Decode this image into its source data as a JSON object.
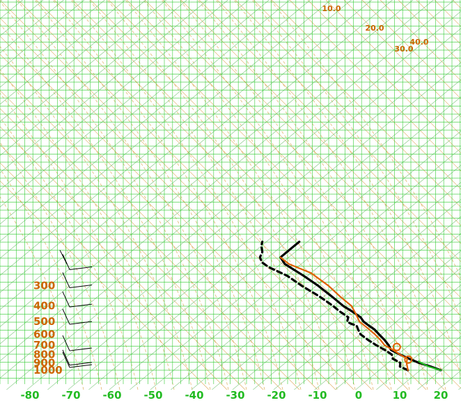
{
  "chart_data": {
    "type": "line",
    "title": "",
    "xlabel": "",
    "ylabel": "",
    "x_ticks": [
      "-80",
      "-70",
      "-60",
      "-50",
      "-40",
      "-30",
      "-20",
      "-10",
      "0",
      "10",
      "20"
    ],
    "p_ticks": [
      "300",
      "400",
      "500",
      "600",
      "700",
      "800",
      "900",
      "1000"
    ],
    "mixing_ratio_labels": [
      "10.0",
      "20.0",
      "30.0",
      "40.0"
    ],
    "xlim": [
      -80,
      22
    ],
    "plim": [
      1050,
      200
    ],
    "colors": {
      "grid": "#33cc33",
      "isotherm_diag": "#88cc88",
      "dry_adiabat": "#cc7a00",
      "moist_adiabat": "#d4a040",
      "temperature": "#000000",
      "dewpoint": "#000000",
      "parcel": "#e06000",
      "lcl_marker": "#e06000",
      "label_x": "#22bb22",
      "label_p": "#cc6600",
      "wind_barb": "#000000"
    },
    "series": [
      {
        "role": "temperature",
        "style": "solid",
        "points": [
          [
            1000,
            20
          ],
          [
            950,
            16.5
          ],
          [
            900,
            12.5
          ],
          [
            850,
            9
          ],
          [
            800,
            5.5
          ],
          [
            750,
            2
          ],
          [
            700,
            0
          ],
          [
            650,
            -2.5
          ],
          [
            600,
            -5.5
          ],
          [
            560,
            -8
          ],
          [
            530,
            -10.5
          ],
          [
            500,
            -13
          ],
          [
            470,
            -15
          ],
          [
            430,
            -19
          ],
          [
            400,
            -22.5
          ],
          [
            350,
            -28
          ],
          [
            300,
            -34.5
          ],
          [
            260,
            -41
          ],
          [
            220,
            -49
          ],
          [
            200,
            -52
          ],
          [
            180,
            -52
          ],
          [
            160,
            -52
          ]
        ]
      },
      {
        "role": "dewpoint",
        "style": "dashed",
        "points": [
          [
            1000,
            12
          ],
          [
            950,
            9
          ],
          [
            900,
            8
          ],
          [
            850,
            5
          ],
          [
            800,
            3.5
          ],
          [
            750,
            0.5
          ],
          [
            700,
            -3
          ],
          [
            650,
            -6.5
          ],
          [
            600,
            -10
          ],
          [
            560,
            -12
          ],
          [
            530,
            -13.5
          ],
          [
            515,
            -15.5
          ],
          [
            500,
            -17
          ],
          [
            470,
            -18
          ],
          [
            430,
            -22
          ],
          [
            400,
            -25
          ],
          [
            350,
            -31
          ],
          [
            300,
            -38.5
          ],
          [
            260,
            -45
          ],
          [
            230,
            -52
          ],
          [
            215,
            -55
          ],
          [
            200,
            -57
          ],
          [
            185,
            -58
          ],
          [
            170,
            -60
          ],
          [
            160,
            -61
          ]
        ]
      },
      {
        "role": "parcel",
        "style": "solid",
        "points": [
          [
            1000,
            12
          ],
          [
            900,
            9.5
          ],
          [
            850,
            8.5
          ],
          [
            800,
            5.5
          ],
          [
            750,
            2.5
          ],
          [
            700,
            -1
          ],
          [
            650,
            -3.5
          ],
          [
            600,
            -6.5
          ],
          [
            550,
            -10
          ],
          [
            500,
            -14
          ],
          [
            450,
            -17
          ],
          [
            400,
            -20.5
          ],
          [
            350,
            -26
          ],
          [
            300,
            -32
          ],
          [
            250,
            -40
          ],
          [
            220,
            -48
          ],
          [
            200,
            -52
          ]
        ]
      },
      {
        "role": "surface-parcel-segment",
        "style": "solid",
        "points": [
          [
            1000,
            20
          ],
          [
            950,
            16
          ],
          [
            900,
            13
          ],
          [
            880,
            12
          ]
        ]
      }
    ],
    "lcl_markers": [
      {
        "p": 718,
        "t": 2.5
      },
      {
        "p": 860,
        "t": 9
      }
    ],
    "wind_barbs": [
      {
        "p": 220,
        "kind": "double"
      },
      {
        "p": 285,
        "kind": "single"
      },
      {
        "p": 375,
        "kind": "single"
      },
      {
        "p": 480,
        "kind": "single"
      },
      {
        "p": 700,
        "kind": "single"
      },
      {
        "p": 860,
        "kind": "single"
      },
      {
        "p": 940,
        "kind": "single"
      }
    ]
  }
}
